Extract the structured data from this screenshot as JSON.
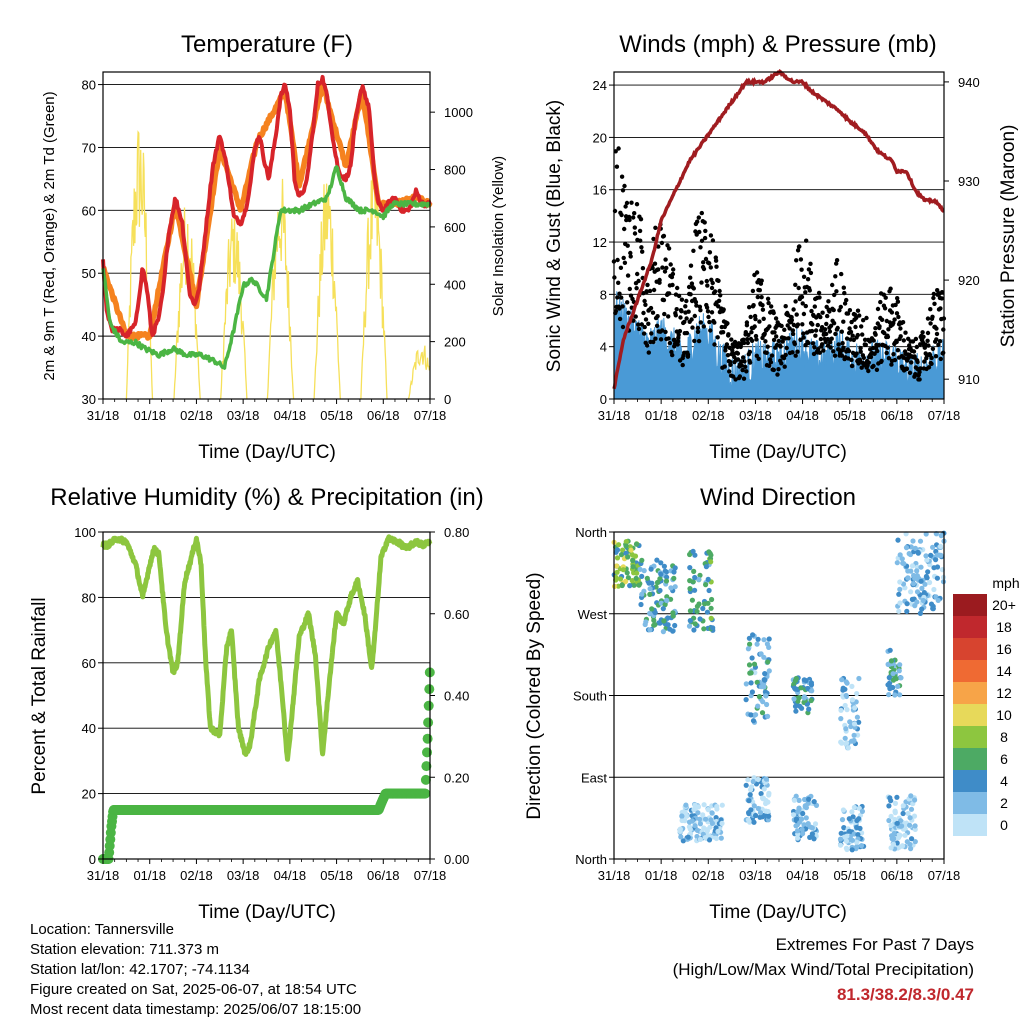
{
  "colors": {
    "temp_2m": "#d7242a",
    "temp_9m": "#f5821f",
    "dewpoint": "#4bb544",
    "solar": "#f6e05a",
    "wind": "#000000",
    "gust": "#4a9ad6",
    "pressure": "#a01c20",
    "rh": "#8dc63f",
    "rain": "#4bb544",
    "extremes_values": "#c0282d"
  },
  "x_ticks": [
    "31/18",
    "01/18",
    "02/18",
    "03/18",
    "04/18",
    "05/18",
    "06/18",
    "07/18"
  ],
  "chart_data": [
    {
      "type": "line",
      "title": "Temperature (F)",
      "xlabel": "Time (Day/UTC)",
      "ylabel": "2m & 9m T (Red, Orange) & 2m Td (Green)",
      "y2label": "Solar Insolation (Yellow)",
      "ylim": [
        30,
        82
      ],
      "y2lim": [
        0,
        1140
      ],
      "yticks": [
        30,
        40,
        50,
        60,
        70,
        80
      ],
      "y2ticks": [
        0,
        200,
        400,
        600,
        800,
        1000
      ],
      "xlim": [
        0,
        7
      ],
      "grid": true,
      "series": [
        {
          "name": "2m T",
          "x": [
            0,
            0.08,
            0.2,
            0.35,
            0.5,
            0.7,
            0.85,
            0.95,
            1.05,
            1.2,
            1.3,
            1.4,
            1.55,
            1.7,
            1.85,
            1.95,
            2.05,
            2.2,
            2.35,
            2.5,
            2.65,
            2.8,
            2.95,
            3.05,
            3.15,
            3.25,
            3.35,
            3.45,
            3.55,
            3.7,
            3.8,
            3.9,
            4.0,
            4.1,
            4.2,
            4.35,
            4.5,
            4.6,
            4.7,
            4.8,
            4.95,
            5.05,
            5.2,
            5.3,
            5.4,
            5.55,
            5.7,
            5.8,
            5.9,
            6.0,
            6.1,
            6.25,
            6.4,
            6.55,
            6.7,
            6.85,
            7.0
          ],
          "values": [
            52,
            44,
            41,
            41,
            40,
            42,
            51,
            47,
            40,
            43,
            48,
            56,
            62,
            58,
            47,
            45,
            47,
            57,
            67,
            72,
            67,
            59,
            58,
            60,
            64,
            70,
            72,
            68,
            65,
            72,
            78,
            80,
            76,
            65,
            62,
            64,
            73,
            80,
            81,
            78,
            70,
            66,
            65,
            67,
            74,
            80,
            76,
            66,
            61,
            60,
            61,
            62,
            60,
            60,
            63,
            61,
            61
          ]
        },
        {
          "name": "9m T",
          "x": [
            0,
            0.5,
            1.0,
            1.55,
            2.0,
            2.5,
            2.95,
            3.3,
            3.9,
            4.2,
            4.7,
            5.2,
            5.55,
            5.9,
            6.25,
            6.7,
            7.0
          ],
          "values": [
            51,
            40,
            40,
            61,
            45,
            70,
            60,
            71,
            79,
            64,
            80,
            67,
            79,
            61,
            61,
            62,
            61
          ]
        },
        {
          "name": "2m Td",
          "x": [
            0,
            0.15,
            0.4,
            0.7,
            0.9,
            1.2,
            1.5,
            1.8,
            2.1,
            2.4,
            2.6,
            2.8,
            3.0,
            3.2,
            3.5,
            3.8,
            4.0,
            4.2,
            4.5,
            4.8,
            5.0,
            5.2,
            5.5,
            5.8,
            6.0,
            6.2,
            6.5,
            6.8,
            7.0
          ],
          "values": [
            51,
            42,
            39,
            39,
            38,
            37,
            38,
            37,
            37,
            36,
            35,
            41,
            48,
            49,
            46,
            60,
            60,
            60,
            61,
            62,
            67,
            62,
            60,
            60,
            59,
            61,
            61,
            61,
            61
          ]
        },
        {
          "name": "Solar",
          "axis": "y2",
          "peaks_x": [
            0.78,
            1.8,
            2.8,
            3.8,
            4.8,
            5.8,
            6.82
          ],
          "peaks": [
            1000,
            720,
            690,
            800,
            820,
            840,
            210
          ]
        }
      ]
    },
    {
      "type": "scatter",
      "title": "Winds (mph) & Pressure (mb)",
      "xlabel": "Time (Day/UTC)",
      "ylabel": "Sonic Wind & Gust (Blue, Black)",
      "y2label": "Station Pressure (Maroon)",
      "ylim": [
        0,
        25
      ],
      "y2lim": [
        908,
        941
      ],
      "yticks": [
        0,
        4,
        8,
        12,
        16,
        20,
        24
      ],
      "y2ticks": [
        910,
        920,
        930,
        940
      ],
      "xlim": [
        0,
        7
      ],
      "grid": true,
      "series": [
        {
          "name": "Wind",
          "x": [
            0,
            0.25,
            0.5,
            0.75,
            1.0,
            1.25,
            1.5,
            1.75,
            2.0,
            2.25,
            2.5,
            2.75,
            3.0,
            3.25,
            3.5,
            3.75,
            4.0,
            4.25,
            4.5,
            4.75,
            5.0,
            5.25,
            5.5,
            5.75,
            6.0,
            6.25,
            6.5,
            6.75,
            7.0
          ],
          "values": [
            7,
            6,
            5,
            4,
            5,
            4,
            3,
            5,
            5,
            3,
            2,
            2,
            3,
            3,
            3,
            4,
            4,
            3,
            3,
            4,
            3,
            3,
            3,
            3,
            3,
            2,
            2,
            3,
            3
          ]
        },
        {
          "name": "Gust",
          "x": [
            0,
            0.25,
            0.5,
            0.75,
            1.0,
            1.25,
            1.5,
            1.75,
            2.0,
            2.25,
            2.5,
            2.75,
            3.0,
            3.25,
            3.5,
            3.75,
            4.0,
            4.25,
            4.5,
            4.75,
            5.0,
            5.25,
            5.5,
            5.75,
            6.0,
            6.25,
            6.5,
            6.75,
            7.0
          ],
          "values": [
            18,
            15,
            13,
            10,
            13,
            9,
            6,
            12,
            14,
            7,
            4,
            4,
            9,
            7,
            5,
            7,
            12,
            8,
            6,
            10,
            6,
            6,
            5,
            8,
            7,
            4,
            4,
            7,
            8
          ]
        },
        {
          "name": "Pressure",
          "axis": "y2",
          "x": [
            0,
            0.2,
            0.5,
            0.8,
            1.0,
            1.3,
            1.6,
            1.9,
            2.2,
            2.5,
            2.8,
            3.0,
            3.2,
            3.5,
            3.8,
            4.0,
            4.2,
            4.5,
            4.8,
            5.0,
            5.3,
            5.6,
            5.9,
            6.0,
            6.2,
            6.4,
            6.6,
            6.8,
            7.0
          ],
          "values": [
            909,
            914,
            918,
            922,
            926,
            929,
            932,
            934,
            936,
            938,
            940,
            940,
            940,
            941,
            940,
            940,
            939,
            938,
            937,
            936,
            935,
            933,
            932,
            931,
            931,
            929,
            928,
            928,
            927
          ]
        }
      ]
    },
    {
      "type": "line",
      "title": "Relative Humidity (%) & Precipitation (in)",
      "xlabel": "Time (Day/UTC)",
      "ylabel": "Percent & Total Rainfall",
      "ylim": [
        0,
        100
      ],
      "y2lim": [
        0,
        0.8
      ],
      "yticks": [
        0,
        20,
        40,
        60,
        80,
        100
      ],
      "y2ticks": [
        0.0,
        0.2,
        0.4,
        0.6,
        0.8
      ],
      "y2tick_labels": [
        "0.00",
        "0.20",
        "0.40",
        "0.60",
        "0.80"
      ],
      "xlim": [
        0,
        7
      ],
      "grid": true,
      "series": [
        {
          "name": "RH",
          "x": [
            0,
            0.1,
            0.3,
            0.5,
            0.7,
            0.85,
            1.0,
            1.1,
            1.2,
            1.35,
            1.5,
            1.6,
            1.75,
            1.85,
            2.0,
            2.1,
            2.2,
            2.3,
            2.5,
            2.65,
            2.75,
            2.9,
            3.05,
            3.15,
            3.35,
            3.55,
            3.7,
            3.85,
            3.95,
            4.05,
            4.2,
            4.4,
            4.55,
            4.7,
            4.85,
            5.0,
            5.15,
            5.3,
            5.45,
            5.6,
            5.75,
            5.8,
            5.95,
            6.1,
            6.3,
            6.5,
            6.7,
            6.85,
            7.0
          ],
          "values": [
            96,
            96,
            98,
            97,
            90,
            80,
            90,
            95,
            93,
            70,
            57,
            60,
            85,
            90,
            98,
            90,
            60,
            40,
            38,
            65,
            70,
            40,
            32,
            35,
            55,
            65,
            70,
            48,
            30,
            45,
            68,
            75,
            62,
            32,
            55,
            75,
            72,
            80,
            85,
            75,
            58,
            65,
            92,
            98,
            97,
            95,
            97,
            96,
            97
          ]
        },
        {
          "name": "Precip",
          "axis": "y2",
          "x": [
            0,
            0.12,
            0.18,
            0.22,
            0.3,
            1.0,
            2.0,
            3.0,
            4.0,
            5.0,
            5.9,
            5.97,
            6.05,
            6.5,
            6.9,
            6.95,
            7.0
          ],
          "values": [
            0,
            0,
            0.08,
            0.12,
            0.12,
            0.12,
            0.12,
            0.12,
            0.12,
            0.12,
            0.12,
            0.14,
            0.16,
            0.16,
            0.16,
            0.3,
            0.47
          ]
        }
      ]
    },
    {
      "type": "scatter",
      "title": "Wind Direction",
      "xlabel": "Time (Day/UTC)",
      "ylabel": "Direction (Colored By Speed)",
      "ylim": [
        0,
        360
      ],
      "yticks": [
        0,
        90,
        180,
        270,
        360
      ],
      "ytick_labels": [
        "North",
        "East",
        "South",
        "West",
        "North"
      ],
      "xlim": [
        0,
        7
      ],
      "grid": true,
      "legend": {
        "title": "mph",
        "position": "right",
        "labels": [
          "20+",
          "18",
          "16",
          "14",
          "12",
          "10",
          "8",
          "6",
          "4",
          "2",
          "0"
        ],
        "colors": [
          "#9b1b1f",
          "#c0282d",
          "#d7442f",
          "#ef6a33",
          "#f7a448",
          "#e7d95a",
          "#8dc63f",
          "#4daa64",
          "#3f8cc8",
          "#7fbbe6",
          "#bfe3f7"
        ]
      },
      "clusters": [
        {
          "x": [
            0.0,
            0.55
          ],
          "dir": [
            300,
            350
          ],
          "speed": 8
        },
        {
          "x": [
            0.55,
            1.3
          ],
          "dir": [
            250,
            330
          ],
          "speed": 5
        },
        {
          "x": [
            1.6,
            2.1
          ],
          "dir": [
            250,
            340
          ],
          "speed": 6
        },
        {
          "x": [
            1.4,
            2.3
          ],
          "dir": [
            20,
            60
          ],
          "speed": 2
        },
        {
          "x": [
            2.8,
            3.3
          ],
          "dir": [
            150,
            250
          ],
          "speed": 4
        },
        {
          "x": [
            2.8,
            3.3
          ],
          "dir": [
            40,
            90
          ],
          "speed": 3
        },
        {
          "x": [
            3.8,
            4.2
          ],
          "dir": [
            160,
            200
          ],
          "speed": 5
        },
        {
          "x": [
            3.8,
            4.3
          ],
          "dir": [
            20,
            70
          ],
          "speed": 3
        },
        {
          "x": [
            4.8,
            5.2
          ],
          "dir": [
            120,
            200
          ],
          "speed": 3
        },
        {
          "x": [
            4.8,
            5.3
          ],
          "dir": [
            10,
            60
          ],
          "speed": 3
        },
        {
          "x": [
            5.8,
            6.1
          ],
          "dir": [
            180,
            230
          ],
          "speed": 5
        },
        {
          "x": [
            5.8,
            6.4
          ],
          "dir": [
            10,
            70
          ],
          "speed": 2
        },
        {
          "x": [
            6.0,
            7.0
          ],
          "dir": [
            270,
            360
          ],
          "speed": 3
        }
      ]
    }
  ],
  "info": {
    "location": "Location: Tannersville",
    "elevation": "Station elevation: 711.373 m",
    "latlon": "Station lat/lon: 42.1707; -74.1134",
    "created": "Figure created on Sat, 2025-06-07, at 18:54 UTC",
    "recent": "Most recent data timestamp: 2025/06/07 18:15:00"
  },
  "extremes": {
    "title": "Extremes For Past 7 Days",
    "subtitle": "(High/Low/Max Wind/Total Precipitation)",
    "values": "81.3/38.2/8.3/0.47"
  }
}
